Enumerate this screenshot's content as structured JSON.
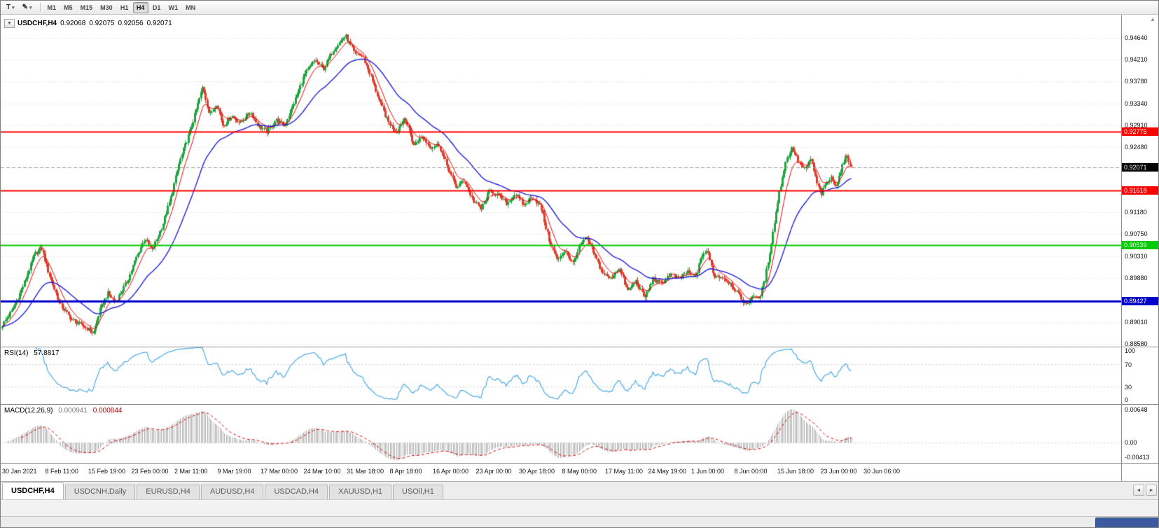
{
  "icons": {
    "collapse": "▼",
    "caret_down": "▾",
    "pencil": "✎",
    "tab_left": "◄",
    "tab_right": "►",
    "axis_up": "▲"
  },
  "toolbar": {
    "template_button": "T",
    "timeframes": [
      "M1",
      "M5",
      "M15",
      "M30",
      "H1",
      "H4",
      "D1",
      "W1",
      "MN"
    ],
    "active_timeframe": "H4"
  },
  "chart": {
    "header": {
      "symbol": "USDCHF,H4",
      "open": "0.92068",
      "high": "0.92075",
      "low": "0.92056",
      "close": "0.92071"
    },
    "price_axis_labels": [
      "0.94640",
      "0.94210",
      "0.93780",
      "0.93340",
      "0.92910",
      "0.92480",
      "0.91180",
      "0.90750",
      "0.90310",
      "0.89880",
      "0.89010",
      "0.88580"
    ],
    "levels": [
      {
        "label": "0.92775",
        "value": 0.92775,
        "color": "#ff0000",
        "line_width": 2
      },
      {
        "label": "0.91618",
        "value": 0.91618,
        "color": "#ff0000",
        "line_width": 2
      },
      {
        "label": "0.90539",
        "value": 0.90539,
        "color": "#00cc00",
        "line_width": 2
      },
      {
        "label": "0.89427",
        "value": 0.89427,
        "color": "#0000cd",
        "line_width": 3
      }
    ],
    "current_price": {
      "label": "0.92071",
      "value": 0.92071,
      "badge_color": "#000000"
    },
    "time_axis_labels": [
      "30 Jan 2021",
      "8 Feb 11:00",
      "15 Feb 19:00",
      "23 Feb 00:00",
      "2 Mar 11:00",
      "9 Mar 19:00",
      "17 Mar 00:00",
      "24 Mar 10:00",
      "31 Mar 18:00",
      "8 Apr 18:00",
      "16 Apr 00:00",
      "23 Apr 00:00",
      "30 Apr 18:00",
      "8 May 00:00",
      "17 May 11:00",
      "24 May 19:00",
      "1 Jun 00:00",
      "8 Jun 00:00",
      "15 Jun 18:00",
      "23 Jun 00:00",
      "30 Jun 06:00"
    ]
  },
  "indicators": {
    "rsi": {
      "name": "RSI(14)",
      "value": "57.8817",
      "axis_labels": [
        "100",
        "70",
        "30",
        "0"
      ],
      "level_lines": [
        70,
        30
      ],
      "line_color": "#4aa8e8"
    },
    "macd": {
      "name": "MACD(12,26,9)",
      "values": [
        "0.000941",
        "0.000844"
      ],
      "axis_labels": [
        "0.00648",
        "0.00",
        "-0.00413"
      ],
      "histogram_color": "#ababab",
      "signal_color": "#d60000"
    }
  },
  "tabs": {
    "items": [
      {
        "label": "USDCHF,H4",
        "active": true
      },
      {
        "label": "USDCNH,Daily",
        "active": false
      },
      {
        "label": "EURUSD,H4",
        "active": false
      },
      {
        "label": "AUDUSD,H4",
        "active": false
      },
      {
        "label": "USDCAD,H4",
        "active": false
      },
      {
        "label": "XAUUSD,H1",
        "active": false
      },
      {
        "label": "USOil,H1",
        "active": false
      }
    ]
  },
  "chart_data": {
    "type": "candlestick",
    "symbol": "USDCHF",
    "timeframe": "H4",
    "visible_range": {
      "start": "30 Jan 2021",
      "end": "30 Jun 2021"
    },
    "y_range": [
      0.8852,
      0.951
    ],
    "num_candles": 540,
    "data_width_fraction": 0.7594,
    "noise": 0.0009,
    "wick": 0.0006,
    "ma_fast_period": 9,
    "ma_slow_period": 36,
    "colors": {
      "up": "#1fa23f",
      "down": "#e03c2c",
      "ma_fast": "#e80000",
      "ma_slow": "#2020dd"
    },
    "close_anchors": [
      [
        0.0,
        0.8895
      ],
      [
        0.012,
        0.8925
      ],
      [
        0.025,
        0.8975
      ],
      [
        0.038,
        0.9035
      ],
      [
        0.046,
        0.9048
      ],
      [
        0.055,
        0.8995
      ],
      [
        0.068,
        0.8935
      ],
      [
        0.082,
        0.8905
      ],
      [
        0.1,
        0.8888
      ],
      [
        0.107,
        0.8878
      ],
      [
        0.115,
        0.8925
      ],
      [
        0.124,
        0.8958
      ],
      [
        0.133,
        0.894
      ],
      [
        0.148,
        0.8985
      ],
      [
        0.158,
        0.903
      ],
      [
        0.168,
        0.9068
      ],
      [
        0.176,
        0.9042
      ],
      [
        0.188,
        0.909
      ],
      [
        0.198,
        0.9145
      ],
      [
        0.208,
        0.9215
      ],
      [
        0.222,
        0.9285
      ],
      [
        0.236,
        0.9368
      ],
      [
        0.244,
        0.931
      ],
      [
        0.252,
        0.9335
      ],
      [
        0.26,
        0.929
      ],
      [
        0.27,
        0.931
      ],
      [
        0.28,
        0.9295
      ],
      [
        0.292,
        0.9318
      ],
      [
        0.302,
        0.9288
      ],
      [
        0.312,
        0.9278
      ],
      [
        0.322,
        0.9302
      ],
      [
        0.332,
        0.929
      ],
      [
        0.342,
        0.933
      ],
      [
        0.356,
        0.9392
      ],
      [
        0.368,
        0.942
      ],
      [
        0.378,
        0.9402
      ],
      [
        0.39,
        0.9442
      ],
      [
        0.404,
        0.9468
      ],
      [
        0.414,
        0.9435
      ],
      [
        0.424,
        0.9428
      ],
      [
        0.434,
        0.9388
      ],
      [
        0.444,
        0.9338
      ],
      [
        0.454,
        0.9298
      ],
      [
        0.464,
        0.9278
      ],
      [
        0.474,
        0.9308
      ],
      [
        0.484,
        0.9252
      ],
      [
        0.494,
        0.9268
      ],
      [
        0.504,
        0.9248
      ],
      [
        0.514,
        0.9252
      ],
      [
        0.524,
        0.9208
      ],
      [
        0.534,
        0.9168
      ],
      [
        0.544,
        0.9182
      ],
      [
        0.554,
        0.9142
      ],
      [
        0.564,
        0.9125
      ],
      [
        0.574,
        0.9162
      ],
      [
        0.584,
        0.9152
      ],
      [
        0.594,
        0.9136
      ],
      [
        0.604,
        0.9155
      ],
      [
        0.614,
        0.9132
      ],
      [
        0.624,
        0.915
      ],
      [
        0.634,
        0.9128
      ],
      [
        0.644,
        0.9062
      ],
      [
        0.654,
        0.9022
      ],
      [
        0.663,
        0.9045
      ],
      [
        0.671,
        0.9015
      ],
      [
        0.68,
        0.9052
      ],
      [
        0.688,
        0.9068
      ],
      [
        0.696,
        0.9038
      ],
      [
        0.706,
        0.9
      ],
      [
        0.716,
        0.8986
      ],
      [
        0.726,
        0.901
      ],
      [
        0.736,
        0.8962
      ],
      [
        0.746,
        0.8982
      ],
      [
        0.756,
        0.8948
      ],
      [
        0.766,
        0.8986
      ],
      [
        0.776,
        0.8976
      ],
      [
        0.786,
        0.8996
      ],
      [
        0.796,
        0.8986
      ],
      [
        0.806,
        0.9
      ],
      [
        0.816,
        0.899
      ],
      [
        0.824,
        0.9035
      ],
      [
        0.83,
        0.9042
      ],
      [
        0.838,
        0.8992
      ],
      [
        0.848,
        0.899
      ],
      [
        0.858,
        0.8976
      ],
      [
        0.868,
        0.8952
      ],
      [
        0.876,
        0.8934
      ],
      [
        0.884,
        0.8956
      ],
      [
        0.89,
        0.8944
      ],
      [
        0.898,
        0.8985
      ],
      [
        0.906,
        0.9065
      ],
      [
        0.914,
        0.9152
      ],
      [
        0.922,
        0.9218
      ],
      [
        0.93,
        0.9246
      ],
      [
        0.938,
        0.9216
      ],
      [
        0.946,
        0.9202
      ],
      [
        0.952,
        0.9226
      ],
      [
        0.958,
        0.9182
      ],
      [
        0.964,
        0.9152
      ],
      [
        0.97,
        0.9176
      ],
      [
        0.976,
        0.9186
      ],
      [
        0.982,
        0.9172
      ],
      [
        0.988,
        0.9206
      ],
      [
        0.994,
        0.9232
      ],
      [
        1.0,
        0.9207
      ]
    ]
  }
}
